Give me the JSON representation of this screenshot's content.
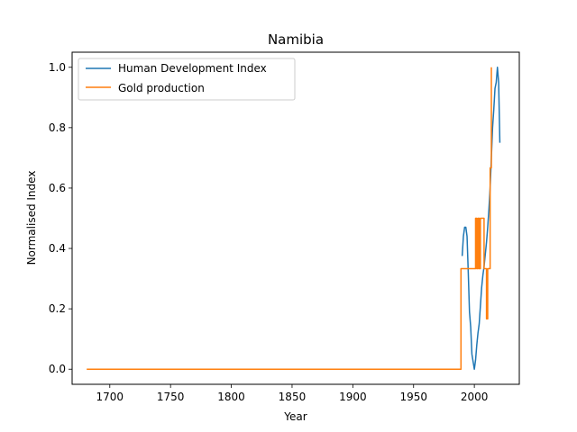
{
  "chart_data": {
    "type": "line",
    "title": "Namibia",
    "xlabel": "Year",
    "ylabel": "Normalised Index",
    "xlim": [
      1669,
      2037
    ],
    "ylim": [
      -0.05,
      1.05
    ],
    "xticks": [
      1700,
      1750,
      1800,
      1850,
      1900,
      1950,
      2000
    ],
    "yticks": [
      0.0,
      0.2,
      0.4,
      0.6,
      0.8,
      1.0
    ],
    "grid": false,
    "legend_position": "upper-left",
    "series": [
      {
        "name": "Human Development Index",
        "color": "#1f77b4",
        "x": [
          1990,
          1991,
          1992,
          1993,
          1994,
          1995,
          1996,
          1997,
          1998,
          1999,
          2000,
          2001,
          2002,
          2003,
          2004,
          2005,
          2006,
          2007,
          2008,
          2009,
          2010,
          2011,
          2012,
          2013,
          2014,
          2015,
          2016,
          2017,
          2018,
          2019,
          2020,
          2021
        ],
        "y": [
          0.375,
          0.44,
          0.47,
          0.47,
          0.44,
          0.32,
          0.19,
          0.14,
          0.05,
          0.025,
          0.0,
          0.03,
          0.08,
          0.12,
          0.15,
          0.21,
          0.27,
          0.31,
          0.34,
          0.38,
          0.42,
          0.47,
          0.53,
          0.6,
          0.7,
          0.8,
          0.86,
          0.93,
          0.95,
          1.0,
          0.95,
          0.75
        ]
      },
      {
        "name": "Gold production",
        "color": "#ff7f0e",
        "x": [
          1681,
          1989,
          1989,
          2001,
          2001,
          2002,
          2002,
          2003,
          2003,
          2004,
          2004,
          2005,
          2005,
          2006,
          2006,
          2007,
          2007,
          2008,
          2008,
          2009,
          2009,
          2010,
          2010,
          2011,
          2011,
          2012,
          2012,
          2013,
          2013,
          2014,
          2014
        ],
        "y": [
          0.0,
          0.0,
          0.333,
          0.333,
          0.5,
          0.5,
          0.333,
          0.333,
          0.5,
          0.5,
          0.333,
          0.333,
          0.5,
          0.5,
          0.5,
          0.5,
          0.5,
          0.5,
          0.333,
          0.333,
          0.333,
          0.333,
          0.167,
          0.167,
          0.333,
          0.333,
          0.333,
          0.333,
          0.667,
          0.667,
          1.0
        ]
      }
    ]
  }
}
